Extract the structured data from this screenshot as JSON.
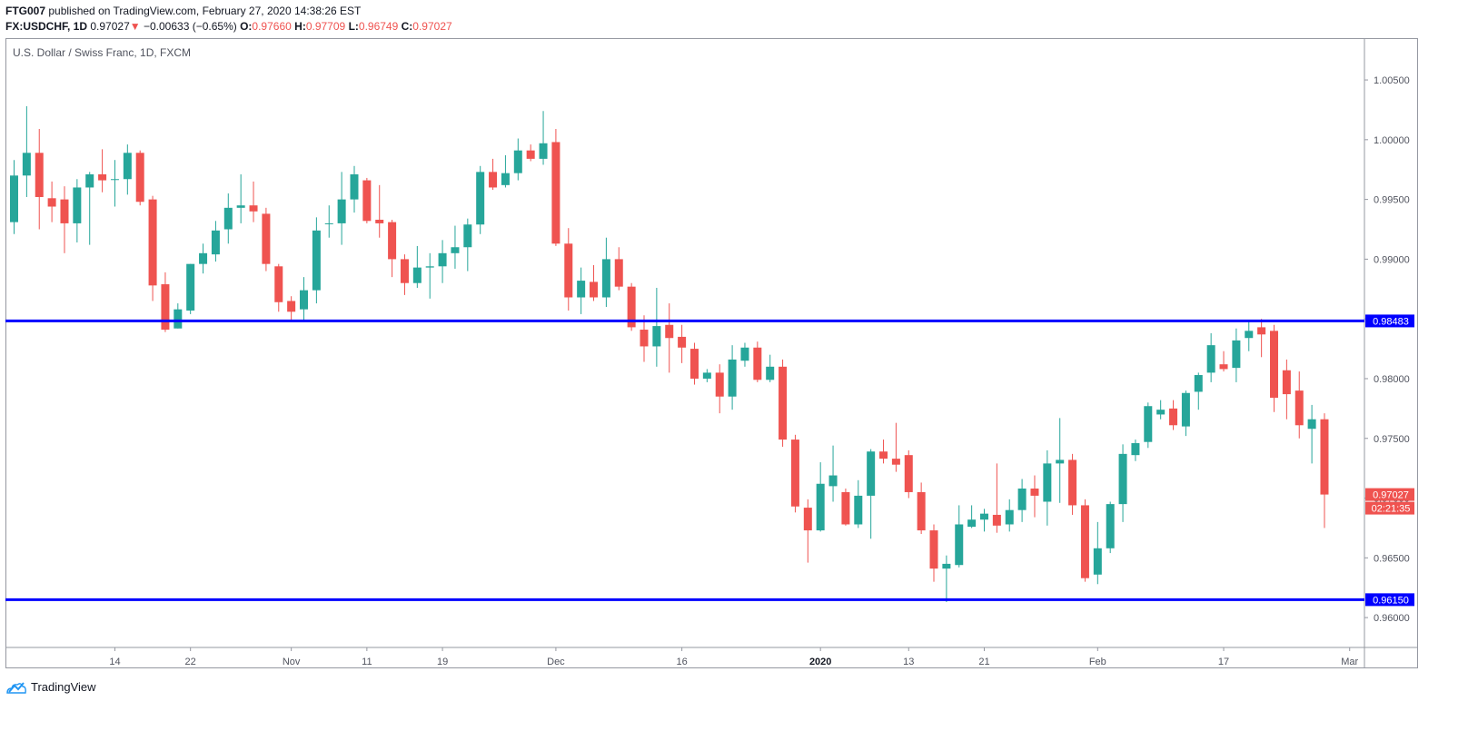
{
  "header": {
    "author": "FTG007",
    "published_text": "published on TradingView.com, February 27, 2020 14:38:26 EST",
    "symbol": "FX:USDCHF, 1D",
    "last": "0.97027",
    "change_arrow": "▼",
    "change": "−0.00633 (−0.65%)",
    "o_label": "O:",
    "o": "0.97660",
    "h_label": "H:",
    "h": "0.97709",
    "l_label": "L:",
    "l": "0.96749",
    "c_label": "C:",
    "c": "0.97027"
  },
  "footer": {
    "brand": "TradingView"
  },
  "colors": {
    "up": "#26a69a",
    "down": "#ef5350",
    "level_line": "#0000ff",
    "axis_text": "#50535e"
  },
  "chart_data": {
    "type": "candlestick",
    "title": "U.S. Dollar / Swiss Franc, 1D, FXCM",
    "ylim": [
      0.9575,
      1.0085
    ],
    "y_ticks": [
      "1.00500",
      "1.00000",
      "0.99500",
      "0.99000",
      "0.98500",
      "0.98000",
      "0.97500",
      "0.97000",
      "0.96500",
      "0.96000"
    ],
    "x_tick_labels": [
      {
        "label": "14",
        "index": 8
      },
      {
        "label": "22",
        "index": 14
      },
      {
        "label": "Nov",
        "index": 22
      },
      {
        "label": "11",
        "index": 28
      },
      {
        "label": "19",
        "index": 34
      },
      {
        "label": "Dec",
        "index": 43
      },
      {
        "label": "16",
        "index": 53
      },
      {
        "label": "2020",
        "index": 64,
        "bold": true
      },
      {
        "label": "13",
        "index": 71
      },
      {
        "label": "21",
        "index": 77
      },
      {
        "label": "Feb",
        "index": 86
      },
      {
        "label": "17",
        "index": 96
      },
      {
        "label": "Mar",
        "index": 106
      }
    ],
    "horizontal_levels": [
      {
        "price": 0.98483,
        "label": "0.98483"
      },
      {
        "price": 0.9615,
        "label": "0.96150"
      }
    ],
    "last_price_label": "0.97027",
    "countdown_label": "02:21:35",
    "candles": [
      [
        0.9931,
        0.997,
        0.9921,
        0.9983
      ],
      [
        0.997,
        0.9989,
        0.9952,
        1.0028
      ],
      [
        0.9989,
        0.9952,
        0.9925,
        1.0009
      ],
      [
        0.9951,
        0.9944,
        0.9931,
        0.9965
      ],
      [
        0.995,
        0.993,
        0.9905,
        0.9961
      ],
      [
        0.993,
        0.996,
        0.9914,
        0.9967
      ],
      [
        0.996,
        0.9971,
        0.9912,
        0.9973
      ],
      [
        0.9971,
        0.9966,
        0.9956,
        0.9992
      ],
      [
        0.9967,
        0.9967,
        0.9944,
        0.9983
      ],
      [
        0.9967,
        0.9989,
        0.9954,
        0.9996
      ],
      [
        0.9989,
        0.9948,
        0.9945,
        0.9991
      ],
      [
        0.995,
        0.9878,
        0.9865,
        0.9953
      ],
      [
        0.9879,
        0.9841,
        0.9839,
        0.9889
      ],
      [
        0.9842,
        0.9858,
        0.9842,
        0.9863
      ],
      [
        0.9857,
        0.9896,
        0.9854,
        0.9896
      ],
      [
        0.9896,
        0.9905,
        0.9888,
        0.9913
      ],
      [
        0.9904,
        0.9924,
        0.9898,
        0.9932
      ],
      [
        0.9925,
        0.9943,
        0.9913,
        0.9955
      ],
      [
        0.9943,
        0.9945,
        0.993,
        0.9971
      ],
      [
        0.9945,
        0.994,
        0.9931,
        0.9965
      ],
      [
        0.9938,
        0.9896,
        0.989,
        0.9943
      ],
      [
        0.9894,
        0.9864,
        0.9856,
        0.9896
      ],
      [
        0.9865,
        0.9856,
        0.9849,
        0.9869
      ],
      [
        0.9858,
        0.9874,
        0.9849,
        0.9885
      ],
      [
        0.9874,
        0.9924,
        0.9863,
        0.9935
      ],
      [
        0.993,
        0.993,
        0.9918,
        0.9945
      ],
      [
        0.993,
        0.995,
        0.9912,
        0.9973
      ],
      [
        0.995,
        0.9971,
        0.9939,
        0.9978
      ],
      [
        0.9966,
        0.9932,
        0.993,
        0.9968
      ],
      [
        0.9933,
        0.993,
        0.9918,
        0.9962
      ],
      [
        0.9931,
        0.99,
        0.9885,
        0.9933
      ],
      [
        0.99,
        0.988,
        0.987,
        0.9904
      ],
      [
        0.988,
        0.9893,
        0.9876,
        0.9911
      ],
      [
        0.9893,
        0.9894,
        0.9867,
        0.9905
      ],
      [
        0.9894,
        0.9905,
        0.988,
        0.9916
      ],
      [
        0.9905,
        0.991,
        0.9892,
        0.9928
      ],
      [
        0.991,
        0.9929,
        0.989,
        0.9934
      ],
      [
        0.9929,
        0.9973,
        0.9921,
        0.9978
      ],
      [
        0.9973,
        0.996,
        0.9958,
        0.9984
      ],
      [
        0.9962,
        0.9972,
        0.996,
        0.9987
      ],
      [
        0.9972,
        0.9991,
        0.9966,
        1.0001
      ],
      [
        0.9991,
        0.9984,
        0.9982,
        0.9996
      ],
      [
        0.9984,
        0.9997,
        0.9979,
        1.0024
      ],
      [
        0.9998,
        0.9913,
        0.9911,
        1.0009
      ],
      [
        0.9913,
        0.9868,
        0.9857,
        0.9926
      ],
      [
        0.9868,
        0.9882,
        0.9854,
        0.9893
      ],
      [
        0.9881,
        0.9868,
        0.9865,
        0.9895
      ],
      [
        0.9868,
        0.99,
        0.986,
        0.9918
      ],
      [
        0.99,
        0.9877,
        0.9874,
        0.991
      ],
      [
        0.9877,
        0.9843,
        0.984,
        0.988
      ],
      [
        0.9841,
        0.9827,
        0.9814,
        0.9853
      ],
      [
        0.9827,
        0.9844,
        0.981,
        0.9876
      ],
      [
        0.9845,
        0.9834,
        0.9805,
        0.9863
      ],
      [
        0.9835,
        0.9826,
        0.9813,
        0.9845
      ],
      [
        0.9825,
        0.98,
        0.9795,
        0.983
      ],
      [
        0.98,
        0.9805,
        0.9797,
        0.9808
      ],
      [
        0.9805,
        0.9785,
        0.9771,
        0.9812
      ],
      [
        0.9785,
        0.9816,
        0.9774,
        0.9828
      ],
      [
        0.9815,
        0.9826,
        0.981,
        0.983
      ],
      [
        0.9826,
        0.9799,
        0.9797,
        0.9831
      ],
      [
        0.9799,
        0.981,
        0.9797,
        0.982
      ],
      [
        0.981,
        0.9749,
        0.9743,
        0.9816
      ],
      [
        0.9749,
        0.9693,
        0.9688,
        0.9753
      ],
      [
        0.9692,
        0.9673,
        0.9646,
        0.9699
      ],
      [
        0.9673,
        0.9712,
        0.9672,
        0.973
      ],
      [
        0.971,
        0.9719,
        0.9697,
        0.9744
      ],
      [
        0.9705,
        0.9678,
        0.9677,
        0.9708
      ],
      [
        0.9678,
        0.9702,
        0.9675,
        0.9715
      ],
      [
        0.9702,
        0.9739,
        0.9666,
        0.9741
      ],
      [
        0.9739,
        0.9733,
        0.9729,
        0.9749
      ],
      [
        0.9733,
        0.9728,
        0.9722,
        0.9763
      ],
      [
        0.9736,
        0.9705,
        0.97,
        0.974
      ],
      [
        0.9705,
        0.9673,
        0.967,
        0.9713
      ],
      [
        0.9673,
        0.9641,
        0.963,
        0.9678
      ],
      [
        0.9641,
        0.9645,
        0.9613,
        0.9652
      ],
      [
        0.9644,
        0.9678,
        0.9642,
        0.9694
      ],
      [
        0.9676,
        0.9682,
        0.9675,
        0.9694
      ],
      [
        0.9682,
        0.9687,
        0.9672,
        0.9691
      ],
      [
        0.9686,
        0.9677,
        0.9671,
        0.9729
      ],
      [
        0.9678,
        0.969,
        0.9672,
        0.9699
      ],
      [
        0.969,
        0.9708,
        0.968,
        0.9716
      ],
      [
        0.9708,
        0.9702,
        0.9684,
        0.9719
      ],
      [
        0.9697,
        0.9729,
        0.9677,
        0.974
      ],
      [
        0.9729,
        0.9732,
        0.9696,
        0.9767
      ],
      [
        0.9732,
        0.9694,
        0.9686,
        0.9737
      ],
      [
        0.9694,
        0.9633,
        0.963,
        0.9699
      ],
      [
        0.9636,
        0.9658,
        0.9628,
        0.968
      ],
      [
        0.9658,
        0.9695,
        0.9654,
        0.9697
      ],
      [
        0.9695,
        0.9737,
        0.968,
        0.9745
      ],
      [
        0.9736,
        0.9746,
        0.9731,
        0.9749
      ],
      [
        0.9747,
        0.9777,
        0.9742,
        0.978
      ],
      [
        0.977,
        0.9774,
        0.9766,
        0.9782
      ],
      [
        0.9775,
        0.9761,
        0.9757,
        0.9782
      ],
      [
        0.976,
        0.9788,
        0.9752,
        0.979
      ],
      [
        0.9789,
        0.9803,
        0.9774,
        0.9805
      ],
      [
        0.9805,
        0.9828,
        0.9797,
        0.9838
      ],
      [
        0.9812,
        0.9808,
        0.9806,
        0.9823
      ],
      [
        0.9809,
        0.9832,
        0.9797,
        0.9842
      ],
      [
        0.9834,
        0.984,
        0.9823,
        0.9849
      ],
      [
        0.9843,
        0.9837,
        0.9818,
        0.985
      ],
      [
        0.984,
        0.9784,
        0.9772,
        0.9845
      ],
      [
        0.9807,
        0.9787,
        0.9766,
        0.9816
      ],
      [
        0.979,
        0.9761,
        0.975,
        0.9806
      ],
      [
        0.9758,
        0.9766,
        0.9729,
        0.9778
      ],
      [
        0.9766,
        0.9703,
        0.9675,
        0.9771
      ]
    ]
  }
}
